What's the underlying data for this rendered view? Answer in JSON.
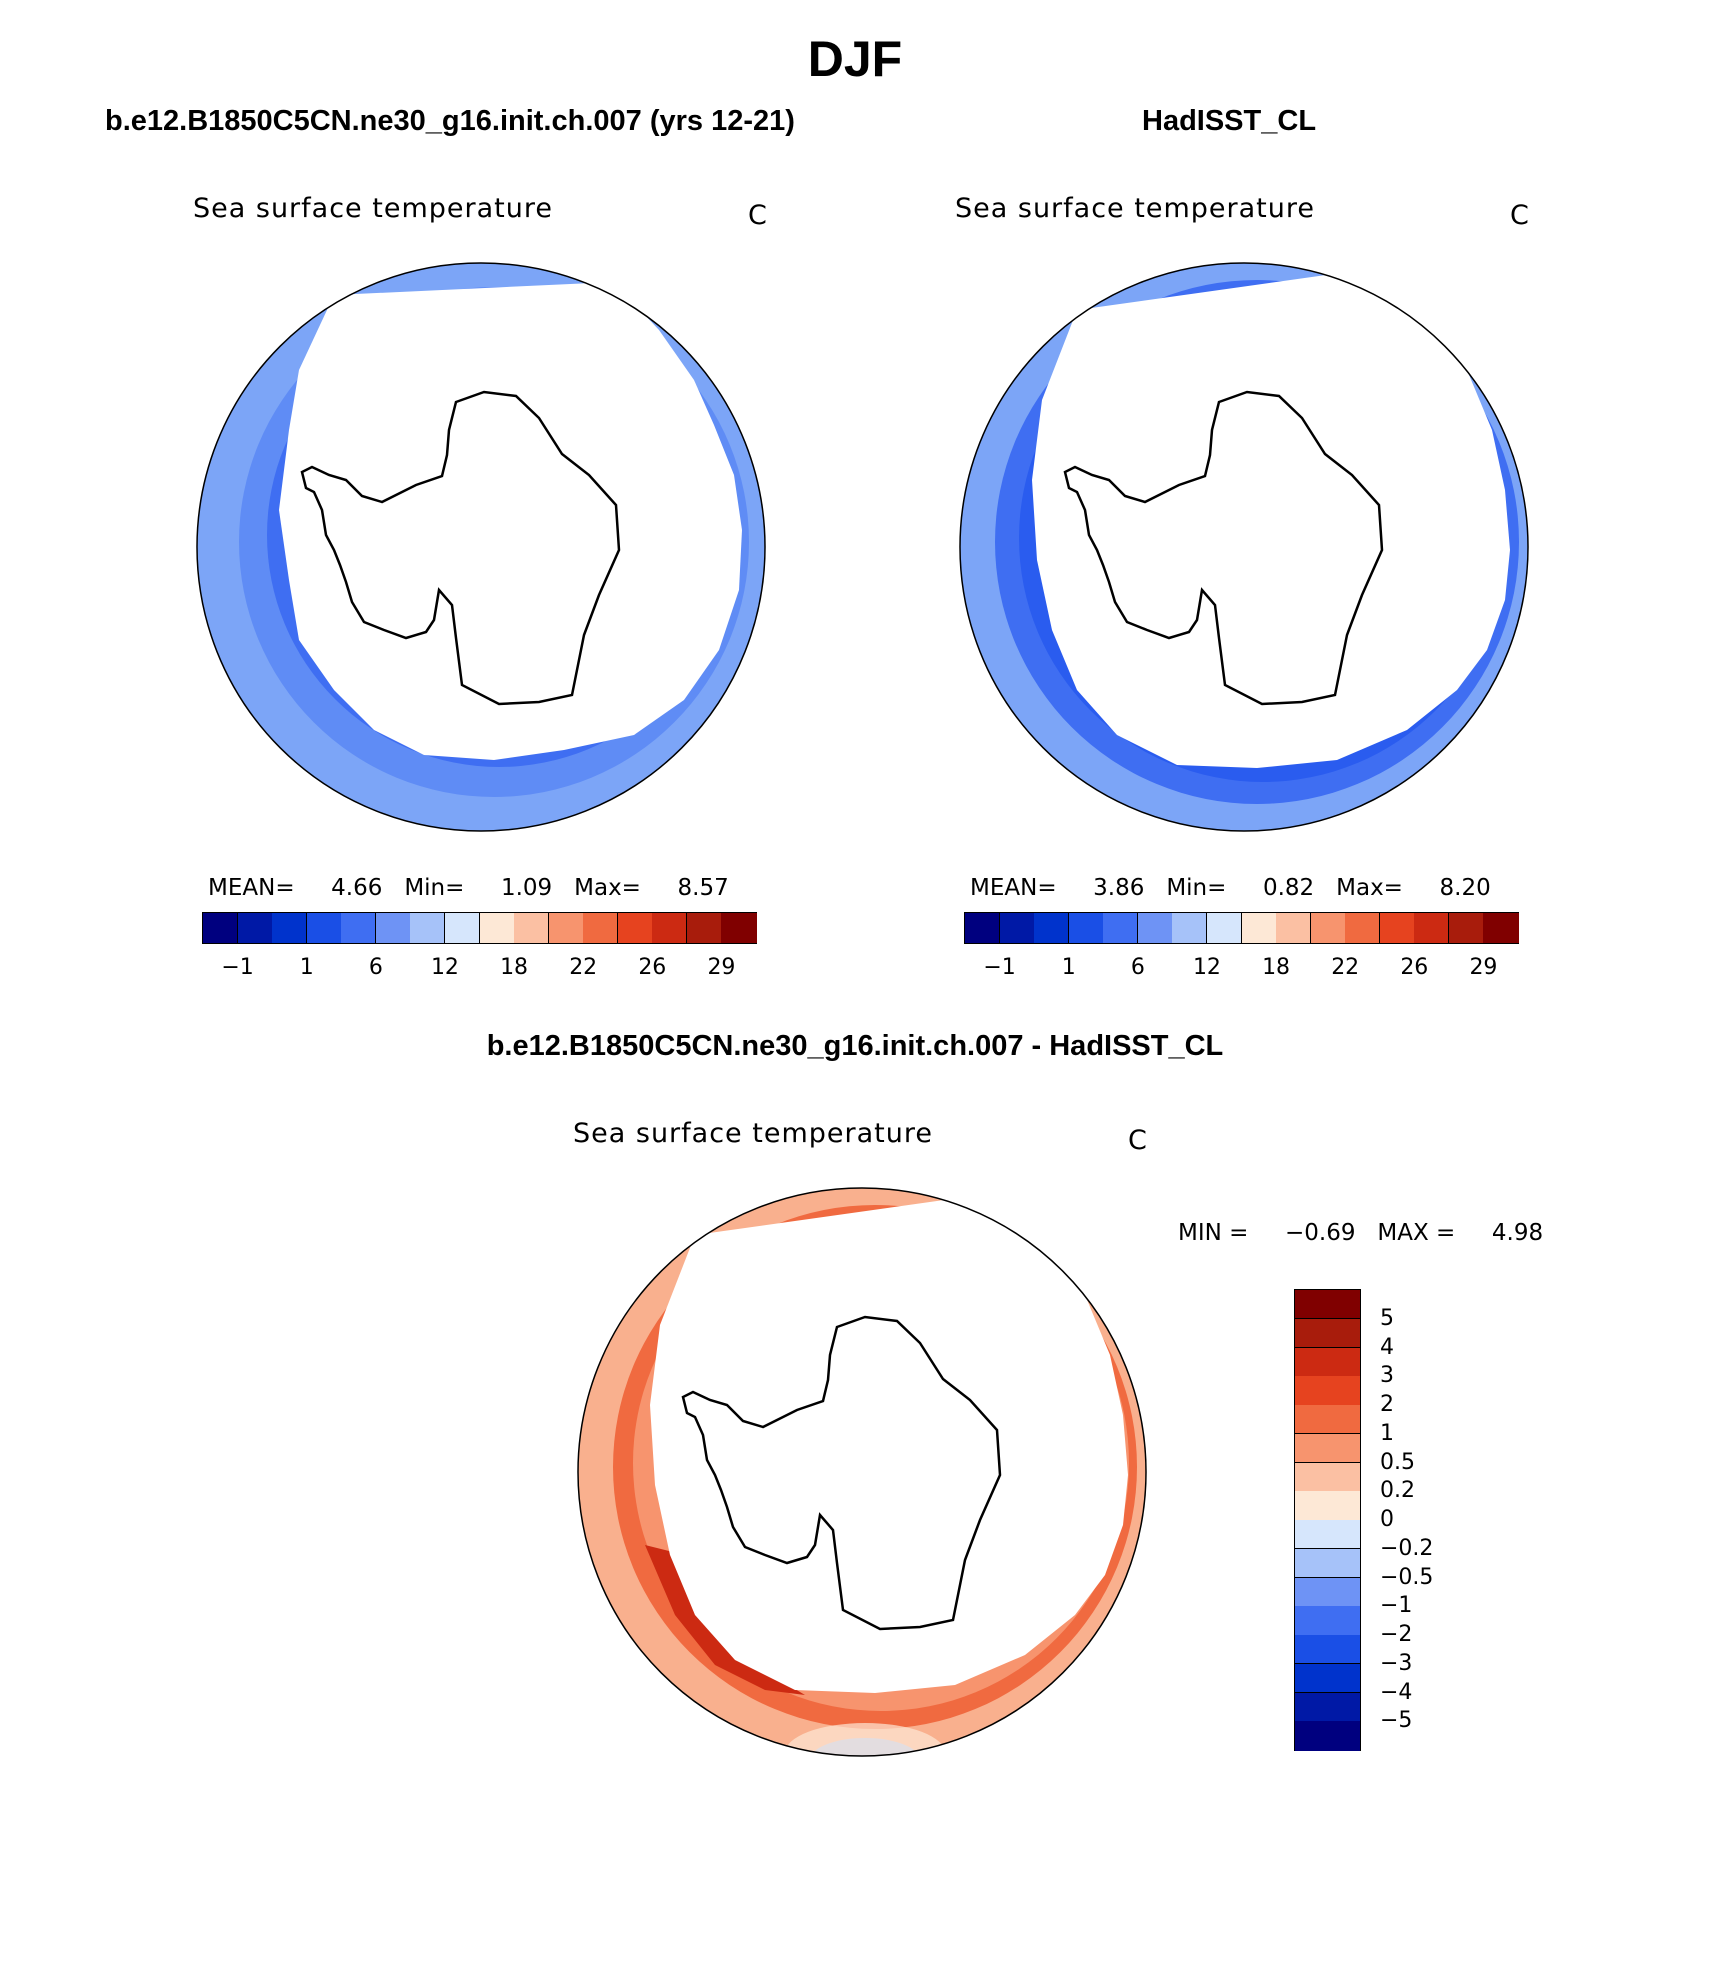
{
  "figure": {
    "title": "DJF"
  },
  "panels": [
    {
      "title": "b.e12.B1850C5CN.ne30_g16.init.ch.007 (yrs 12-21)",
      "variable": "Sea surface temperature",
      "units": "C",
      "stats": {
        "mean_label": "MEAN=",
        "mean": "4.66",
        "min_label": "Min=",
        "min": "1.09",
        "max_label": "Max=",
        "max": "8.57"
      }
    },
    {
      "title": "HadISST_CL",
      "variable": "Sea surface temperature",
      "units": "C",
      "stats": {
        "mean_label": "MEAN=",
        "mean": "3.86",
        "min_label": "Min=",
        "min": "0.82",
        "max_label": "Max=",
        "max": "8.20"
      }
    }
  ],
  "abs_colorbar": {
    "colors": [
      "#00007f",
      "#0019a6",
      "#0033cc",
      "#1a4fe6",
      "#3f6ef2",
      "#6e93f5",
      "#a6c2f9",
      "#d6e6fc",
      "#fde8d6",
      "#fbc0a3",
      "#f7946e",
      "#f06a40",
      "#e6431f",
      "#cc2a12",
      "#a81c0c",
      "#800000"
    ],
    "tick_labels": [
      "−1",
      "1",
      "6",
      "12",
      "18",
      "22",
      "26",
      "29"
    ]
  },
  "diff_panel": {
    "title": "b.e12.B1850C5CN.ne30_g16.init.ch.007 - HadISST_CL",
    "variable": "Sea surface temperature",
    "units": "C",
    "stats": {
      "min_label": "MIN =",
      "min": "−0.69",
      "max_label": "MAX =",
      "max": "4.98"
    }
  },
  "diff_colorbar": {
    "colors_top_to_bottom": [
      "#800000",
      "#a81c0c",
      "#cc2a12",
      "#e6431f",
      "#f06a40",
      "#f7946e",
      "#fbc0a3",
      "#fde8d6",
      "#d6e6fc",
      "#a6c2f9",
      "#6e93f5",
      "#3f6ef2",
      "#1a4fe6",
      "#0033cc",
      "#0019a6",
      "#00007f"
    ],
    "tick_labels": [
      "5",
      "4",
      "3",
      "2",
      "1",
      "0.5",
      "0.2",
      "0",
      "−0.2",
      "−0.5",
      "−1",
      "−2",
      "−3",
      "−4",
      "−5"
    ]
  },
  "maps": [
    {
      "name": "model-sst-map",
      "ring_colors": [
        "#7ca5f7",
        "#5f8cf5",
        "#3f6ef2"
      ]
    },
    {
      "name": "obs-sst-map",
      "ring_colors": [
        "#7ca5f7",
        "#3f6ef2",
        "#2a5cef"
      ]
    },
    {
      "name": "diff-sst-map",
      "ring_colors": [
        "#f9b08e",
        "#f06a40",
        "#e6431f"
      ]
    }
  ]
}
